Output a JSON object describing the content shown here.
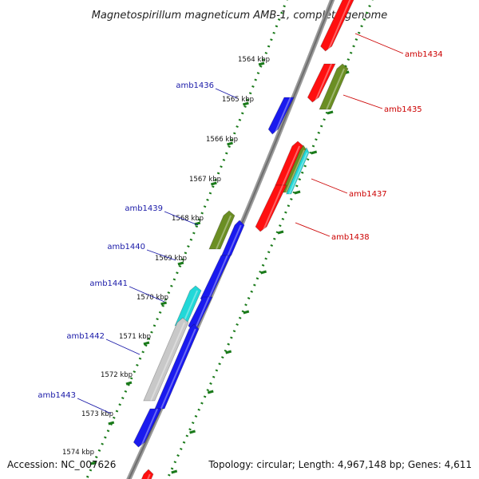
{
  "title": "Magnetospirillum magneticum AMB-1, complete genome",
  "footer": {
    "accession": "Accession: NC_007626",
    "topology": "Topology: circular; Length: 4,967,148 bp; Genes: 4,611"
  },
  "colors": {
    "backbone": "#8c8c8c",
    "tick_dots": "#1a7a1a",
    "plus_label": "#cc0000",
    "minus_label": "#1a1aa8",
    "red": "#ff1010",
    "blue": "#1a1aee",
    "olive": "#6b8e23",
    "cyan": "#22d8d8",
    "gray": "#c8c8c8"
  },
  "scale_labels": [
    "1564 kbp",
    "1565 kbp",
    "1566 kbp",
    "1567 kbp",
    "1568 kbp",
    "1569 kbp",
    "1570 kbp",
    "1571 kbp",
    "1572 kbp",
    "1573 kbp",
    "1574 kbp"
  ],
  "gene_labels": {
    "amb1434": "amb1434",
    "amb1435": "amb1435",
    "amb1436": "amb1436",
    "amb1437": "amb1437",
    "amb1438": "amb1438",
    "amb1439": "amb1439",
    "amb1440": "amb1440",
    "amb1441": "amb1441",
    "amb1442": "amb1442",
    "amb1443": "amb1443"
  }
}
